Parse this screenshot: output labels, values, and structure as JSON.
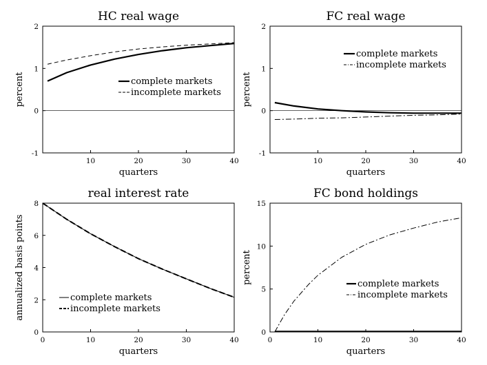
{
  "chart_data": [
    {
      "type": "line",
      "title": "HC real wage",
      "xlabel": "quarters",
      "ylabel": "percent",
      "xlim": [
        0,
        40
      ],
      "ylim": [
        -1,
        2
      ],
      "xticks": [
        10,
        20,
        30,
        40
      ],
      "yticks": [
        -1,
        0,
        1,
        2
      ],
      "zero_line": true,
      "legend": "middle-right",
      "series": [
        {
          "name": "complete markets",
          "style": "solid-thick",
          "x": [
            1,
            5,
            10,
            15,
            20,
            25,
            30,
            35,
            40
          ],
          "y": [
            0.7,
            0.9,
            1.08,
            1.22,
            1.33,
            1.42,
            1.49,
            1.54,
            1.59
          ]
        },
        {
          "name": "incomplete markets",
          "style": "dashed",
          "x": [
            1,
            5,
            10,
            15,
            20,
            25,
            30,
            35,
            40
          ],
          "y": [
            1.1,
            1.2,
            1.3,
            1.39,
            1.46,
            1.51,
            1.55,
            1.58,
            1.61
          ]
        }
      ]
    },
    {
      "type": "line",
      "title": "FC real wage",
      "xlabel": "quarters",
      "ylabel": "percent",
      "xlim": [
        0,
        40
      ],
      "ylim": [
        -1,
        2
      ],
      "xticks": [
        10,
        20,
        30,
        40
      ],
      "yticks": [
        -1,
        0,
        1,
        2
      ],
      "zero_line": true,
      "legend": "upper-right",
      "series": [
        {
          "name": "complete markets",
          "style": "solid-thick",
          "x": [
            1,
            5,
            10,
            15,
            20,
            25,
            30,
            35,
            40
          ],
          "y": [
            0.19,
            0.11,
            0.04,
            0.0,
            -0.03,
            -0.05,
            -0.06,
            -0.06,
            -0.06
          ]
        },
        {
          "name": "incomplete markets",
          "style": "dash-dot",
          "x": [
            1,
            5,
            10,
            15,
            20,
            25,
            30,
            35,
            40
          ],
          "y": [
            -0.21,
            -0.2,
            -0.18,
            -0.17,
            -0.15,
            -0.13,
            -0.11,
            -0.1,
            -0.08
          ]
        }
      ]
    },
    {
      "type": "line",
      "title": "real interest rate",
      "xlabel": "quarters",
      "ylabel": "annualized basis points",
      "xlim": [
        0,
        40
      ],
      "ylim": [
        0,
        8
      ],
      "xticks": [
        0,
        10,
        20,
        30,
        40
      ],
      "yticks": [
        0,
        2,
        4,
        6,
        8
      ],
      "zero_line": false,
      "legend": "lower-left",
      "series": [
        {
          "name": "complete markets",
          "style": "solid-thin",
          "x": [
            0,
            5,
            10,
            15,
            20,
            25,
            30,
            35,
            40
          ],
          "y": [
            8.0,
            7.0,
            6.1,
            5.3,
            4.55,
            3.9,
            3.3,
            2.7,
            2.15
          ]
        },
        {
          "name": "incomplete markets",
          "style": "dashed-thick",
          "x": [
            0,
            5,
            10,
            15,
            20,
            25,
            30,
            35,
            40
          ],
          "y": [
            8.0,
            7.0,
            6.1,
            5.3,
            4.55,
            3.9,
            3.3,
            2.7,
            2.15
          ]
        }
      ]
    },
    {
      "type": "line",
      "title": "FC bond holdings",
      "xlabel": "quarters",
      "ylabel": "percent",
      "xlim": [
        0,
        40
      ],
      "ylim": [
        0,
        15
      ],
      "xticks": [
        0,
        10,
        20,
        30,
        40
      ],
      "yticks": [
        0,
        5,
        10,
        15
      ],
      "zero_line": false,
      "legend": "lower-right",
      "series": [
        {
          "name": "complete markets",
          "style": "solid-thick",
          "x": [
            1,
            10,
            20,
            30,
            40
          ],
          "y": [
            0.05,
            0.05,
            0.05,
            0.05,
            0.05
          ]
        },
        {
          "name": "incomplete markets",
          "style": "dash-dot",
          "x": [
            1,
            3,
            5,
            8,
            10,
            15,
            20,
            25,
            30,
            35,
            40
          ],
          "y": [
            0.0,
            2.0,
            3.6,
            5.5,
            6.6,
            8.7,
            10.2,
            11.3,
            12.1,
            12.8,
            13.3
          ]
        }
      ]
    }
  ]
}
